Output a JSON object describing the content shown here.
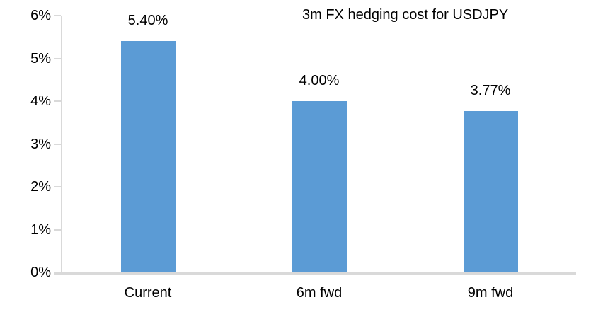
{
  "chart_data": {
    "type": "bar",
    "title": "3m FX hedging cost for USDJPY",
    "categories": [
      "Current",
      "6m fwd",
      "9m fwd"
    ],
    "values": [
      5.4,
      4.0,
      3.77
    ],
    "data_labels": [
      "5.40%",
      "4.00%",
      "3.77%"
    ],
    "xlabel": "",
    "ylabel": "",
    "ylim": [
      0,
      6
    ],
    "y_tick_step": 1,
    "y_tick_labels": [
      "0%",
      "1%",
      "2%",
      "3%",
      "4%",
      "5%",
      "6%"
    ],
    "grid": "off",
    "legend": "none",
    "colors": {
      "bar": "#5B9BD5",
      "axis": "#D9D9D9",
      "text": "#000000",
      "background": "#FFFFFF"
    }
  }
}
